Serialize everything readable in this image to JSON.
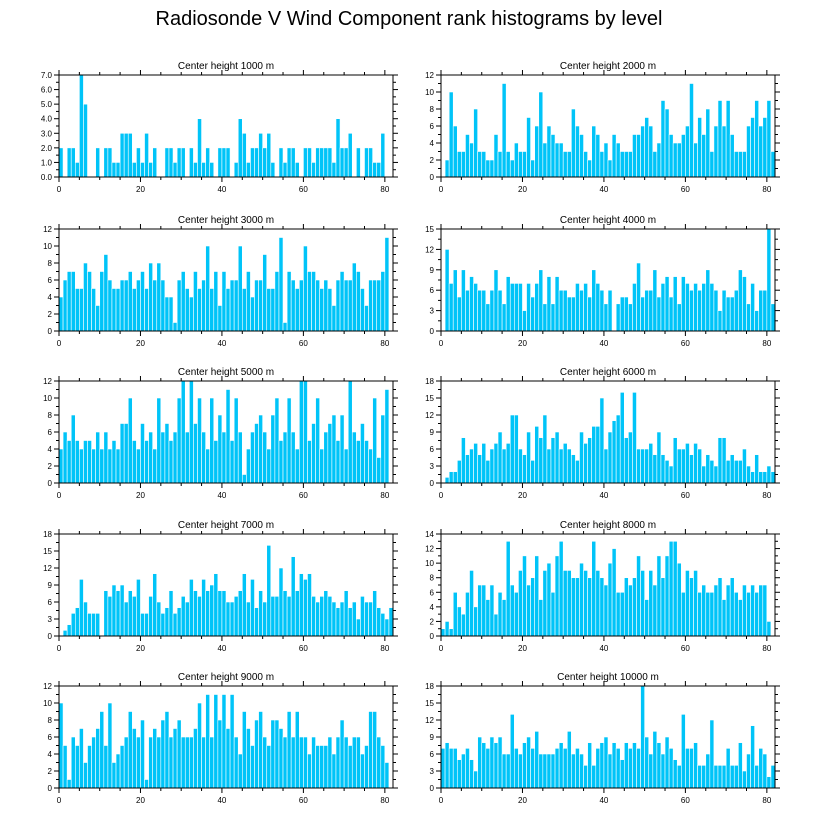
{
  "title": "Radiosonde V Wind Component rank histograms by level",
  "colors": {
    "bar": "#00c4f8",
    "frame": "#000000"
  },
  "chart_data": [
    {
      "type": "bar",
      "title": "Center height 1000 m",
      "xlim": [
        0,
        82
      ],
      "ylim": [
        0,
        7
      ],
      "xticks": [
        0,
        20,
        40,
        60,
        80
      ],
      "yticks": [
        0,
        1,
        2,
        3,
        4,
        5,
        6,
        7
      ],
      "ytick_labels": [
        "0.0",
        "1.0",
        "2.0",
        "3.0",
        "4.0",
        "5.0",
        "6.0",
        "7.0"
      ],
      "x_start": 0,
      "values": [
        2,
        0,
        2,
        2,
        1,
        7,
        5,
        0,
        0,
        2,
        0,
        2,
        2,
        1,
        1,
        3,
        3,
        3,
        1,
        2,
        1,
        3,
        1,
        2,
        0,
        0,
        2,
        2,
        1,
        2,
        2,
        0,
        2,
        1,
        4,
        1,
        2,
        1,
        0,
        2,
        2,
        2,
        0,
        1,
        4,
        3,
        1,
        2,
        2,
        3,
        2,
        3,
        1,
        0,
        2,
        1,
        2,
        2,
        1,
        0,
        2,
        2,
        1,
        2,
        2,
        2,
        2,
        1,
        4,
        2,
        2,
        3,
        0,
        2,
        0,
        2,
        2,
        1,
        1,
        3
      ]
    },
    {
      "type": "bar",
      "title": "Center height 2000 m",
      "xlim": [
        0,
        82
      ],
      "ylim": [
        0,
        12
      ],
      "xticks": [
        0,
        20,
        40,
        60,
        80
      ],
      "yticks": [
        0,
        2,
        4,
        6,
        8,
        10,
        12
      ],
      "ytick_labels": [
        "0",
        "2",
        "4",
        "6",
        "8",
        "10",
        "12"
      ],
      "x_start": 1,
      "values": [
        2,
        10,
        6,
        3,
        3,
        5,
        4,
        8,
        3,
        3,
        2,
        2,
        5,
        3,
        11,
        3,
        2,
        4,
        3,
        3,
        7,
        2,
        6,
        10,
        4,
        6,
        5,
        4,
        4,
        3,
        3,
        8,
        6,
        5,
        3,
        2,
        6,
        5,
        3,
        4,
        2,
        5,
        4,
        3,
        3,
        3,
        5,
        5,
        6,
        7,
        6,
        3,
        4,
        9,
        8,
        5,
        4,
        4,
        5,
        6,
        11,
        4,
        7,
        5,
        8,
        3,
        6,
        9,
        6,
        9,
        5,
        3,
        3,
        3,
        6,
        7,
        9,
        6,
        7,
        9,
        3
      ]
    },
    {
      "type": "bar",
      "title": "Center height 3000 m",
      "xlim": [
        0,
        82
      ],
      "ylim": [
        0,
        12
      ],
      "xticks": [
        0,
        20,
        40,
        60,
        80
      ],
      "yticks": [
        0,
        2,
        4,
        6,
        8,
        10,
        12
      ],
      "ytick_labels": [
        "0",
        "2",
        "4",
        "6",
        "8",
        "10",
        "12"
      ],
      "x_start": 0,
      "values": [
        4,
        6,
        7,
        7,
        5,
        5,
        8,
        7,
        5,
        3,
        7,
        9,
        6,
        5,
        5,
        6,
        6,
        7,
        5,
        6,
        7,
        5,
        8,
        6,
        8,
        6,
        4,
        4,
        1,
        6,
        7,
        5,
        4,
        7,
        5,
        6,
        10,
        5,
        7,
        3,
        7,
        5,
        6,
        6,
        10,
        5,
        7,
        4,
        6,
        6,
        9,
        5,
        5,
        7,
        11,
        1,
        7,
        6,
        5,
        6,
        10,
        7,
        7,
        6,
        5,
        6,
        5,
        3,
        6,
        7,
        6,
        6,
        8,
        7,
        5,
        3,
        6,
        6,
        6,
        7,
        11
      ]
    },
    {
      "type": "bar",
      "title": "Center height 4000 m",
      "xlim": [
        0,
        82
      ],
      "ylim": [
        0,
        15
      ],
      "xticks": [
        0,
        20,
        40,
        60,
        80
      ],
      "yticks": [
        0,
        3,
        6,
        9,
        12,
        15
      ],
      "ytick_labels": [
        "0",
        "3",
        "6",
        "9",
        "12",
        "15"
      ],
      "x_start": 1,
      "values": [
        12,
        7,
        9,
        5,
        9,
        6,
        8,
        7,
        6,
        6,
        4,
        6,
        9,
        6,
        4,
        8,
        7,
        7,
        7,
        3,
        7,
        5,
        7,
        9,
        4,
        8,
        4,
        8,
        6,
        6,
        5,
        5,
        7,
        6,
        7,
        5,
        9,
        7,
        6,
        4,
        6,
        0,
        4,
        5,
        5,
        4,
        7,
        10,
        5,
        6,
        6,
        9,
        5,
        7,
        8,
        5,
        8,
        4,
        8,
        7,
        6,
        7,
        6,
        7,
        9,
        7,
        6,
        3,
        6,
        5,
        5,
        6,
        9,
        8,
        4,
        7,
        3,
        6,
        6,
        15,
        4
      ]
    },
    {
      "type": "bar",
      "title": "Center height 5000 m",
      "xlim": [
        0,
        82
      ],
      "ylim": [
        0,
        12
      ],
      "xticks": [
        0,
        20,
        40,
        60,
        80
      ],
      "yticks": [
        0,
        2,
        4,
        6,
        8,
        10,
        12
      ],
      "ytick_labels": [
        "0",
        "2",
        "4",
        "6",
        "8",
        "10",
        "12"
      ],
      "x_start": 0,
      "values": [
        4,
        6,
        5,
        8,
        5,
        4,
        5,
        5,
        4,
        6,
        4,
        6,
        4,
        5,
        4,
        7,
        7,
        10,
        5,
        4,
        7,
        5,
        6,
        4,
        10,
        6,
        7,
        5,
        6,
        10,
        12,
        6,
        12,
        7,
        10,
        6,
        4,
        10,
        5,
        8,
        6,
        11,
        5,
        10,
        6,
        1,
        4,
        6,
        7,
        8,
        6,
        4,
        8,
        10,
        5,
        6,
        10,
        6,
        4,
        12,
        12,
        5,
        7,
        10,
        4,
        6,
        7,
        8,
        5,
        8,
        4,
        12,
        6,
        5,
        7,
        5,
        4,
        10,
        3,
        8,
        11
      ]
    },
    {
      "type": "bar",
      "title": "Center height 6000 m",
      "xlim": [
        0,
        82
      ],
      "ylim": [
        0,
        18
      ],
      "xticks": [
        0,
        20,
        40,
        60,
        80
      ],
      "yticks": [
        0,
        3,
        6,
        9,
        12,
        15,
        18
      ],
      "ytick_labels": [
        "0",
        "3",
        "6",
        "9",
        "12",
        "15",
        "18"
      ],
      "x_start": 1,
      "values": [
        1,
        2,
        2,
        4,
        8,
        5,
        6,
        7,
        5,
        7,
        4,
        6,
        7,
        9,
        6,
        7,
        12,
        12,
        6,
        5,
        9,
        4,
        10,
        8,
        12,
        6,
        8,
        9,
        6,
        7,
        6,
        5,
        4,
        9,
        7,
        8,
        10,
        10,
        15,
        6,
        9,
        11,
        12,
        16,
        8,
        9,
        16,
        6,
        6,
        6,
        7,
        5,
        9,
        5,
        4,
        3,
        8,
        6,
        6,
        7,
        5,
        7,
        6,
        3,
        5,
        4,
        3,
        8,
        8,
        4,
        5,
        4,
        4,
        6,
        3,
        2,
        5,
        2,
        2,
        3,
        2
      ]
    },
    {
      "type": "bar",
      "title": "Center height 7000 m",
      "xlim": [
        0,
        82
      ],
      "ylim": [
        0,
        18
      ],
      "xticks": [
        0,
        20,
        40,
        60,
        80
      ],
      "yticks": [
        0,
        3,
        6,
        9,
        12,
        15,
        18
      ],
      "ytick_labels": [
        "0",
        "3",
        "6",
        "9",
        "12",
        "15",
        "18"
      ],
      "x_start": 1,
      "values": [
        1,
        2,
        4,
        5,
        10,
        6,
        4,
        4,
        4,
        0,
        8,
        7,
        9,
        8,
        9,
        6,
        8,
        7,
        10,
        4,
        4,
        7,
        11,
        6,
        4,
        5,
        8,
        4,
        5,
        7,
        6,
        10,
        8,
        7,
        10,
        8,
        9,
        11,
        8,
        8,
        6,
        6,
        7,
        8,
        11,
        6,
        10,
        5,
        8,
        6,
        16,
        7,
        7,
        12,
        8,
        7,
        14,
        8,
        11,
        10,
        11,
        7,
        6,
        7,
        8,
        7,
        6,
        5,
        6,
        8,
        5,
        6,
        3,
        7,
        6,
        6,
        8,
        5,
        4,
        3,
        5
      ]
    },
    {
      "type": "bar",
      "title": "Center height 8000 m",
      "xlim": [
        0,
        82
      ],
      "ylim": [
        0,
        14
      ],
      "xticks": [
        0,
        20,
        40,
        60,
        80
      ],
      "yticks": [
        0,
        2,
        4,
        6,
        8,
        10,
        12,
        14
      ],
      "ytick_labels": [
        "0",
        "2",
        "4",
        "6",
        "8",
        "10",
        "12",
        "14"
      ],
      "x_start": 0,
      "values": [
        1,
        2,
        1,
        6,
        4,
        3,
        6,
        9,
        4,
        7,
        7,
        5,
        7,
        3,
        6,
        5,
        13,
        7,
        6,
        9,
        11,
        7,
        8,
        11,
        5,
        9,
        10,
        6,
        11,
        13,
        9,
        9,
        8,
        8,
        10,
        9,
        8,
        13,
        9,
        8,
        7,
        10,
        12,
        6,
        6,
        8,
        7,
        8,
        11,
        9,
        5,
        9,
        7,
        11,
        8,
        11,
        13,
        13,
        10,
        6,
        9,
        8,
        9,
        6,
        7,
        6,
        6,
        7,
        8,
        5,
        7,
        8,
        6,
        5,
        7,
        6,
        7,
        6,
        7,
        7,
        2
      ]
    },
    {
      "type": "bar",
      "title": "Center height 9000 m",
      "xlim": [
        0,
        82
      ],
      "ylim": [
        0,
        12
      ],
      "xticks": [
        0,
        20,
        40,
        60,
        80
      ],
      "yticks": [
        0,
        2,
        4,
        6,
        8,
        10,
        12
      ],
      "ytick_labels": [
        "0",
        "2",
        "4",
        "6",
        "8",
        "10",
        "12"
      ],
      "x_start": 0,
      "values": [
        10,
        5,
        1,
        6,
        5,
        7,
        3,
        5,
        6,
        7,
        9,
        5,
        10,
        3,
        4,
        5,
        6,
        9,
        7,
        6,
        8,
        1,
        6,
        7,
        6,
        8,
        9,
        6,
        7,
        8,
        6,
        6,
        6,
        7,
        10,
        6,
        11,
        6,
        11,
        8,
        11,
        7,
        11,
        6,
        4,
        9,
        7,
        5,
        8,
        9,
        6,
        5,
        8,
        8,
        7,
        6,
        9,
        6,
        9,
        6,
        6,
        4,
        6,
        5,
        5,
        5,
        6,
        4,
        6,
        8,
        6,
        5,
        6,
        6,
        4,
        5,
        9,
        9,
        6,
        5,
        3
      ]
    },
    {
      "type": "bar",
      "title": "Center height 10000 m",
      "xlim": [
        0,
        82
      ],
      "ylim": [
        0,
        18
      ],
      "xticks": [
        0,
        20,
        40,
        60,
        80
      ],
      "yticks": [
        0,
        3,
        6,
        9,
        12,
        15,
        18
      ],
      "ytick_labels": [
        "0",
        "3",
        "6",
        "9",
        "12",
        "15",
        "18"
      ],
      "x_start": 0,
      "values": [
        7,
        8,
        7,
        7,
        5,
        6,
        7,
        5,
        3,
        9,
        8,
        7,
        9,
        8,
        9,
        6,
        6,
        13,
        7,
        6,
        8,
        9,
        7,
        10,
        6,
        6,
        6,
        6,
        7,
        8,
        7,
        10,
        6,
        7,
        6,
        4,
        8,
        4,
        7,
        8,
        9,
        6,
        8,
        7,
        5,
        8,
        7,
        8,
        7,
        18,
        9,
        6,
        10,
        8,
        6,
        9,
        7,
        5,
        4,
        13,
        7,
        7,
        8,
        4,
        4,
        6,
        12,
        4,
        4,
        4,
        7,
        4,
        4,
        8,
        3,
        6,
        11,
        4,
        7,
        6,
        2,
        4
      ]
    }
  ]
}
